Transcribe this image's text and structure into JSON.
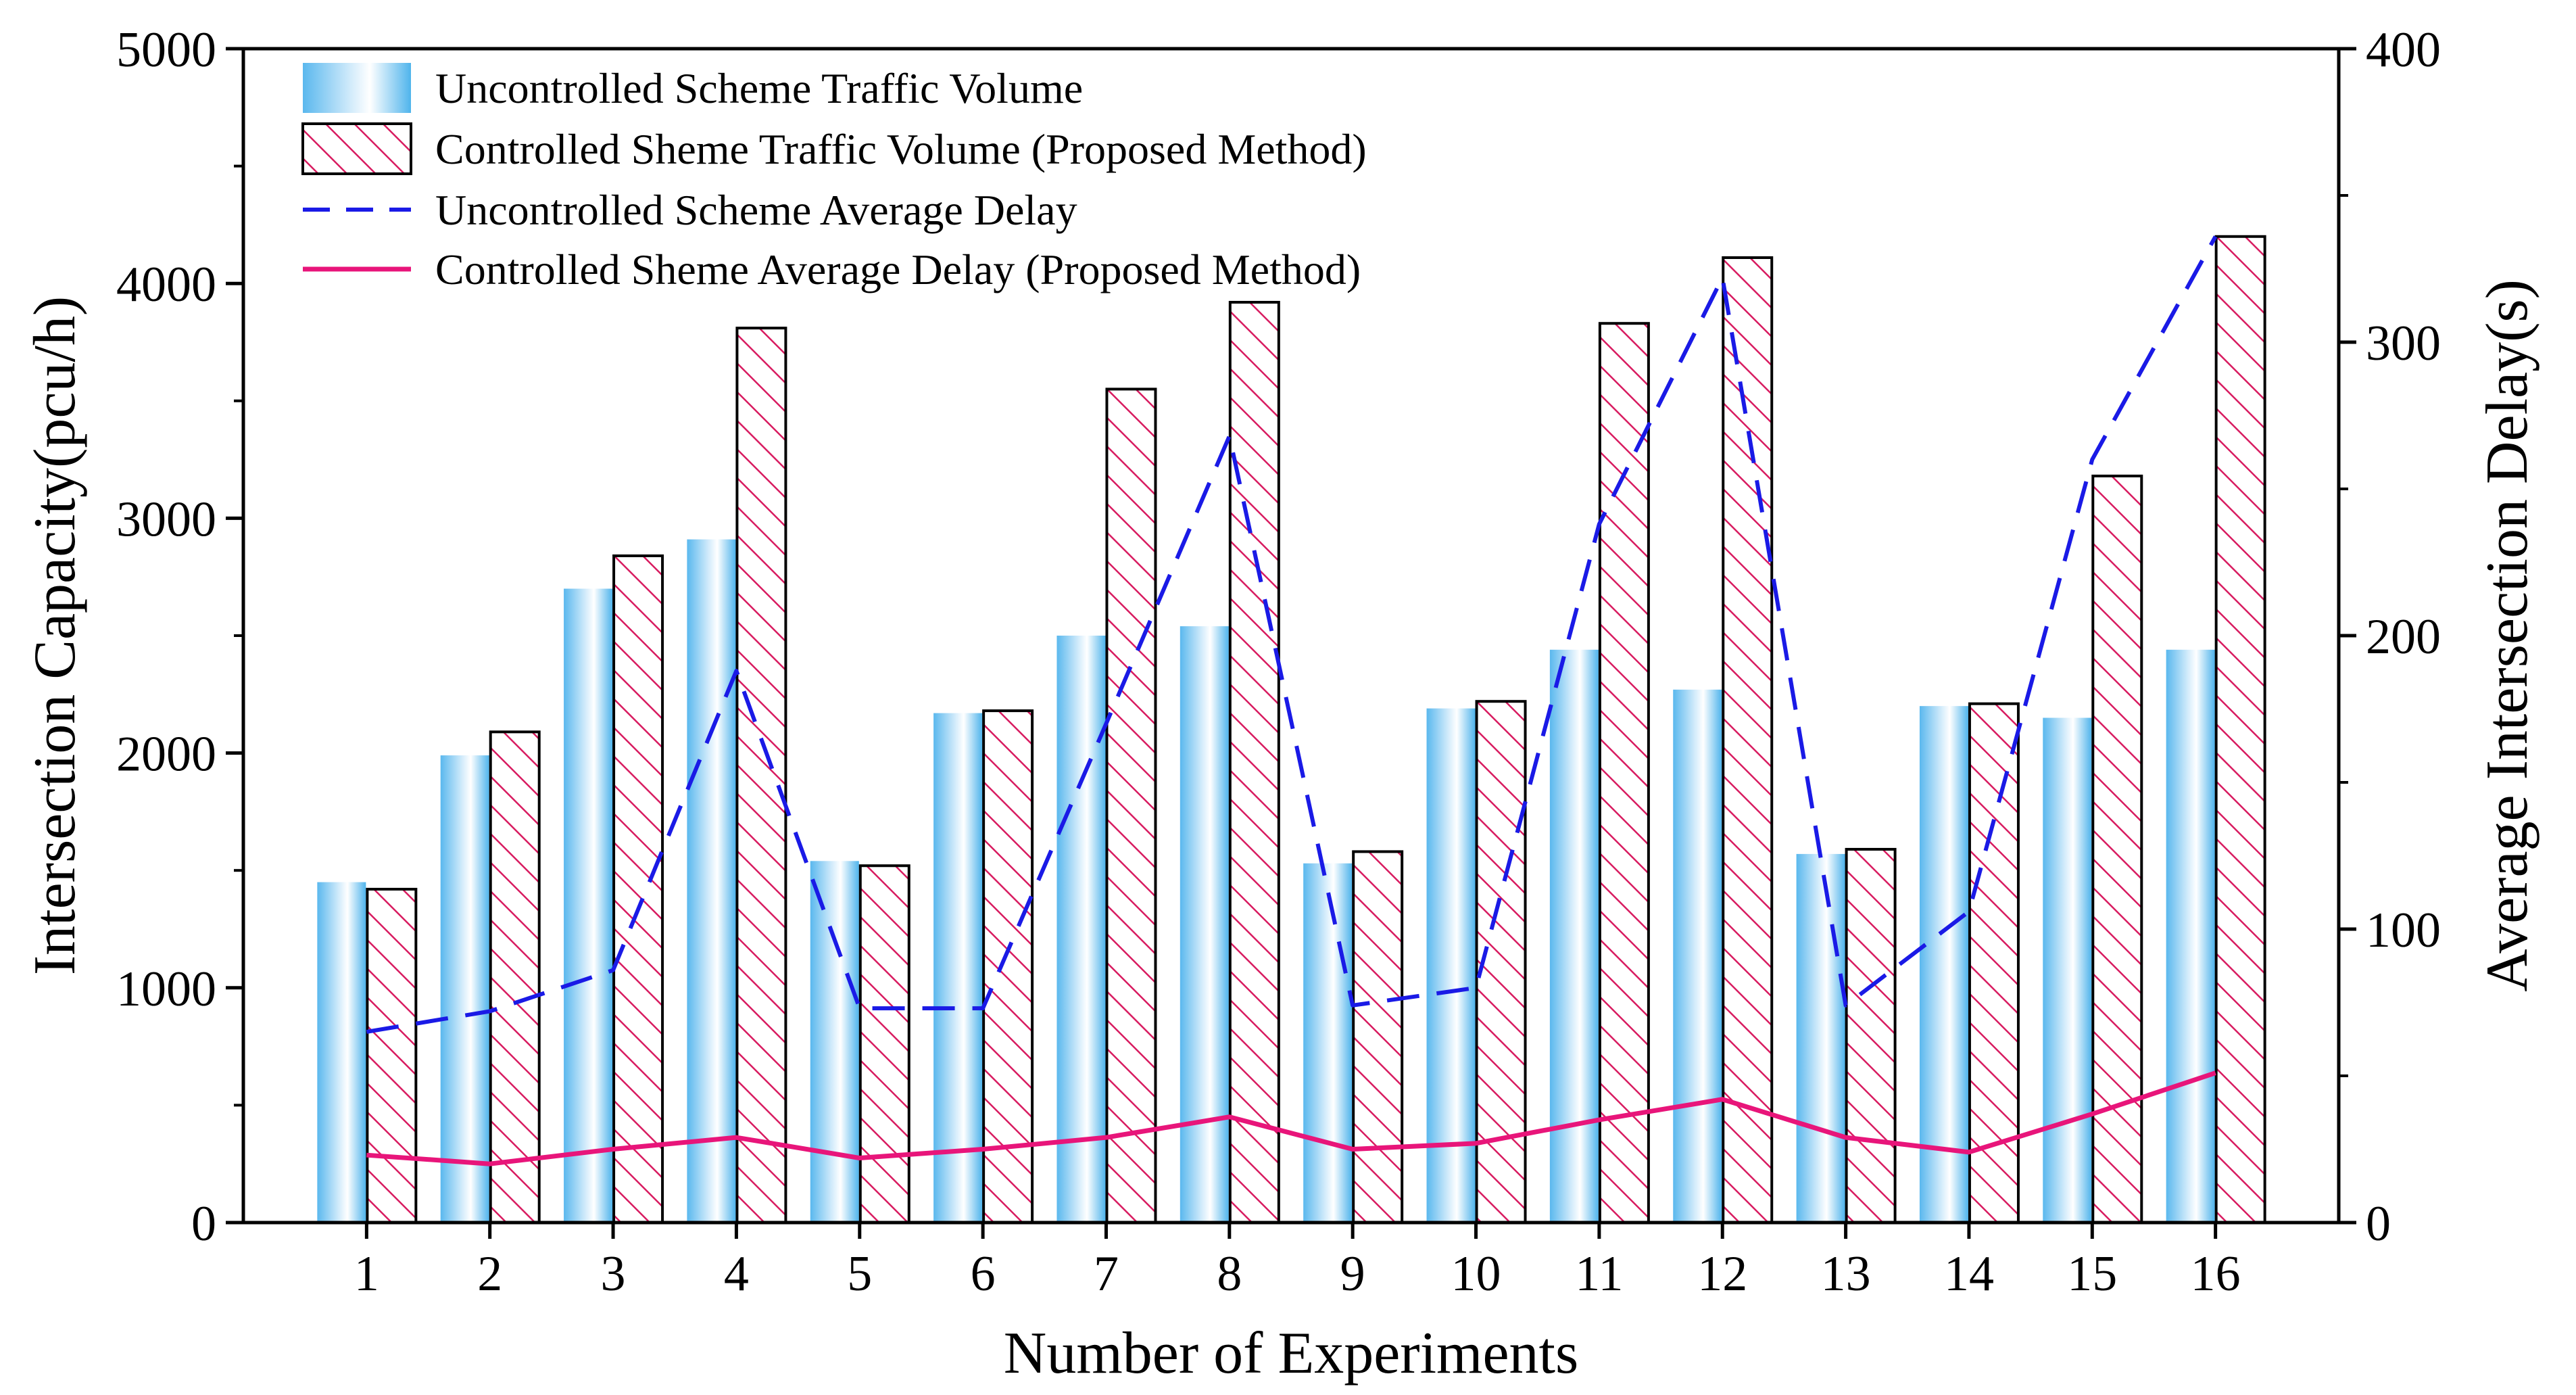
{
  "chart_data": {
    "type": "bar",
    "title": "",
    "xlabel": "Number of Experiments",
    "ylabel": "Intersection Capacity(pcu/h)",
    "y2label": "Average Intersection Delay(s)",
    "ylim": [
      0,
      5000
    ],
    "y2lim": [
      0,
      400
    ],
    "yticks": [
      "0",
      "1000",
      "2000",
      "3000",
      "4000",
      "5000"
    ],
    "y2ticks": [
      "0",
      "100",
      "200",
      "300",
      "400"
    ],
    "categories": [
      "1",
      "2",
      "3",
      "4",
      "5",
      "6",
      "7",
      "8",
      "9",
      "10",
      "11",
      "12",
      "13",
      "14",
      "15",
      "16"
    ],
    "grid": false,
    "legend_position": "top-left",
    "series": [
      {
        "name": "Uncontrolled Scheme Traffic Volume",
        "kind": "bar",
        "axis": "left",
        "style": "gradient",
        "color": "#4FB4EC",
        "values": [
          1450,
          1990,
          2700,
          2910,
          1540,
          2170,
          2500,
          2540,
          1530,
          2190,
          2440,
          2270,
          1570,
          2200,
          2150,
          2440
        ]
      },
      {
        "name": "Controlled Sheme Traffic Volume (Proposed Method)",
        "kind": "bar",
        "axis": "left",
        "style": "hatch",
        "color": "#D81B60",
        "values": [
          1420,
          2090,
          2840,
          3810,
          1520,
          2180,
          3550,
          3920,
          1580,
          2220,
          3830,
          4110,
          1590,
          2210,
          3180,
          4200
        ]
      },
      {
        "name": "Uncontrolled Scheme Average Delay",
        "kind": "line",
        "axis": "right",
        "style": "dashed",
        "color": "#1A1AE6",
        "values": [
          65,
          72,
          86,
          188,
          73,
          73,
          170,
          268,
          74,
          80,
          238,
          322,
          74,
          106,
          260,
          336
        ]
      },
      {
        "name": "Controlled Sheme Average Delay (Proposed Method)",
        "kind": "line",
        "axis": "right",
        "style": "solid",
        "color": "#E8157A",
        "values": [
          23,
          20,
          25,
          29,
          22,
          25,
          29,
          36,
          25,
          27,
          35,
          42,
          29,
          24,
          37,
          51
        ]
      }
    ]
  }
}
